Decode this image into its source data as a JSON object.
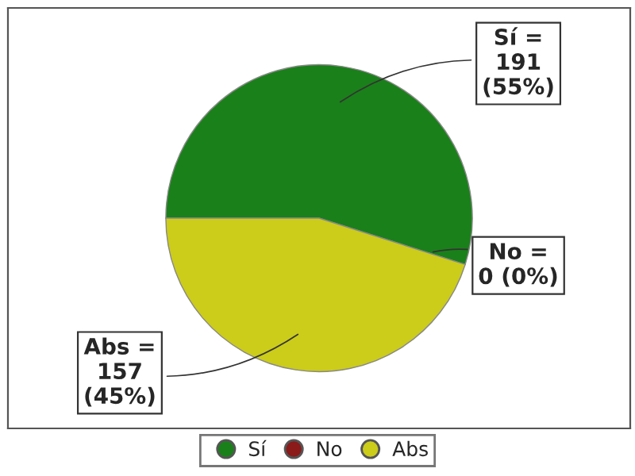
{
  "chart_data": {
    "type": "pie",
    "categories": [
      "Sí",
      "No",
      "Abs"
    ],
    "values": [
      191,
      0,
      157
    ],
    "colors": [
      "#1a801a",
      "#8b1a1a",
      "#cccc1a"
    ],
    "value_labels": [
      "Sí =\n191\n(55%)",
      "No =\n0 (0%)",
      "Abs =\n157\n(45%)"
    ],
    "legend": "bottom"
  }
}
